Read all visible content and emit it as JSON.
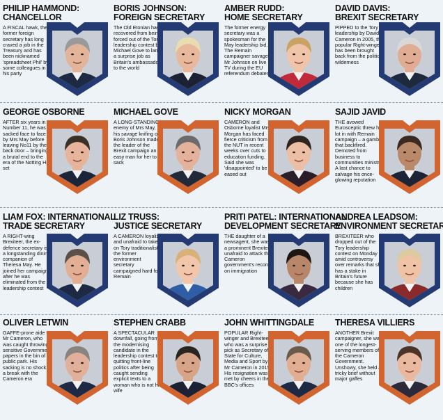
{
  "rows": [
    {
      "badge_color": "#233a72",
      "people": [
        {
          "name1": "PHILIP HAMMOND:",
          "name2": "CHANCELLOR",
          "blurb": "A FISCAL hawk, the former foreign secretary has long craved a job in the Treasury and has been nicknamed 'spreadsheet Phil' by some colleagues in his party",
          "hair": "#9a9a9a",
          "skin": "#e2b49a",
          "suit": "#1e2a44"
        },
        {
          "name1": "BORIS JOHNSON:",
          "name2": "FOREIGN SECRETARY",
          "blurb": "The Old Etonian has recovered from being forced out of the Tory leadership contest by Michael Gove to land a surprise job as Britain's ambassador to the world",
          "hair": "#e8dcb0",
          "skin": "#e8b89c",
          "suit": "#1c2233"
        },
        {
          "name1": "AMBER RUDD:",
          "name2": "HOME SECRETARY",
          "blurb": "The former energy secretary was a spokesman for the May leadership bid. The Remain campaigner savaged Mr Johnson on live TV during the EU referendum debates",
          "hair": "#c9a264",
          "skin": "#f0c4a8",
          "suit": "#c12a3a"
        },
        {
          "name1": "DAVID DAVIS:",
          "name2": "BREXIT SECRETARY",
          "blurb": "PIPPED to the Tory leadership by David Cameron in 2005, the popular Right-winger has been brought back from the political wilderness",
          "hair": "#d8d8d8",
          "skin": "#e0ad94",
          "suit": "#1d2a3e"
        }
      ]
    },
    {
      "badge_color": "#d2642f",
      "people": [
        {
          "name1": "GEORGE OSBORNE",
          "name2": "",
          "blurb": "AFTER six years in Number 11, he was sacked face to face by Mrs May before leaving No11 by the back door – bringing a brutal end to the era of the Notting Hill set",
          "hair": "#3b3026",
          "skin": "#e6b49a",
          "suit": "#1b2438"
        },
        {
          "name1": "MICHAEL GOVE",
          "name2": "",
          "blurb": "A LONG-STANDING enemy of Mrs May, his savage knifing of Boris Johnson made the leader of the Brexit campaign an easy man for her to sack",
          "hair": "#6b6b6b",
          "skin": "#e4b29a",
          "suit": "#222a3a"
        },
        {
          "name1": "NICKY MORGAN",
          "name2": "",
          "blurb": "CAMERON and Osborne loyalist Mrs Morgan has faced fierce criticism from the NUT in recent weeks over cuts to education funding. Said she was 'disappointed' to be eased out",
          "hair": "#2e2420",
          "skin": "#ecbea4",
          "suit": "#2a1e2a"
        },
        {
          "name1": "SAJID JAVID",
          "name2": "",
          "blurb": "THE avowed Eurosceptic threw his lot in with Remain campaign – a gamble that backfired. Demoted from business to communities ministry. A last chance to salvage his once-glowing reputation",
          "hair": "#3a2a22",
          "skin": "#b9896a",
          "suit": "#1c2436"
        }
      ]
    },
    {
      "badge_color": "#233a72",
      "people": [
        {
          "name1": "LIAM FOX: INTERNATIONAL",
          "name2": "TRADE SECRETARY",
          "blurb": "A RIGHT-wing Brexiteer, the ex-defence secretary is a longstanding dining companion of Theresa May. He joined her campaign after he was eliminated from the leadership contest",
          "hair": "#5a5048",
          "skin": "#e2ae94",
          "suit": "#1e2a44"
        },
        {
          "name1": "LIZ TRUSS:",
          "name2": "JUSTICE SECRETARY",
          "blurb": "A CAMERON loyalist and unafraid to take on Tory traditionalists, the former environment secretary campaigned hard for Remain",
          "hair": "#d8b07a",
          "skin": "#f2c6aa",
          "suit": "#2e5fa6"
        },
        {
          "name1": "PRITI PATEL: INTERNATIONAL",
          "name2": "DEVELOPMENT SECRETARY",
          "blurb": "THE daughter of a newsagent, she was a prominent Brexiteer unafraid to attack the Cameron government's record on immigration",
          "hair": "#1e1612",
          "skin": "#b8876a",
          "suit": "#3a2a40"
        },
        {
          "name1": "ANDREA LEADSOM:",
          "name2": "ENVIRONMENT SECRETARY",
          "blurb": "BREXITEER who dropped out of the Tory leadership contest on Monday amid controversy over remarks that she has a stake in Britain's future because she has children",
          "hair": "#dccaa0",
          "skin": "#f0c2a6",
          "suit": "#8a2a2a"
        }
      ]
    },
    {
      "badge_color": "#d2642f",
      "people": [
        {
          "name1": "OLIVER LETWIN",
          "name2": "",
          "blurb": "GAFFE-prone aide to Mr Cameron, who was caught throwing sensitive Government papers in the bin of a public park. His sacking is no shock in a break with the Cameron era",
          "hair": "#8a8480",
          "skin": "#e0b09a",
          "suit": "#1e2a44"
        },
        {
          "name1": "STEPHEN CRABB",
          "name2": "",
          "blurb": "A SPECTACULAR downfall, going from the modernising candidate in the leadership contest to quitting front-line politics after being caught sending explicit texts to a woman who is not his wife",
          "hair": "#2a2420",
          "skin": "#d8a488",
          "suit": "#1c2234"
        },
        {
          "name1": "JOHN WHITTINGDALE",
          "name2": "",
          "blurb": "POPULAR Right-winger and Brexiteer who was a surprise pick as Secretary of State for Culture, Media and Sport by Mr Cameron in 2015. His resignation was met by cheers in the BBC's offices",
          "hair": "#6a5a4a",
          "skin": "#e2ae92",
          "suit": "#1e2a44"
        },
        {
          "name1": "THERESA VILLIERS",
          "name2": "",
          "blurb": "ANOTHER Brexit campaigner, she was one of the longest-serving members of the Cameron Government. Unshowy, she held a tricky brief without major gaffes",
          "hair": "#4a3428",
          "skin": "#eab89e",
          "suit": "#2a2a3a"
        }
      ]
    }
  ]
}
